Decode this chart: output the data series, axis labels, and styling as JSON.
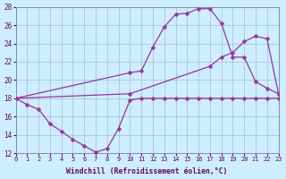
{
  "xlabel": "Windchill (Refroidissement éolien,°C)",
  "bg_color": "#cceeff",
  "grid_color": "#aabbcc",
  "line_color": "#993399",
  "ylim": [
    12,
    28
  ],
  "xlim": [
    0,
    23
  ],
  "yticks": [
    12,
    14,
    16,
    18,
    20,
    22,
    24,
    26,
    28
  ],
  "xticks": [
    0,
    1,
    2,
    3,
    4,
    5,
    6,
    7,
    8,
    9,
    10,
    11,
    12,
    13,
    14,
    15,
    16,
    17,
    18,
    19,
    20,
    21,
    22,
    23
  ],
  "line1_x": [
    0,
    1,
    2,
    3,
    4,
    5,
    6,
    7,
    8,
    9,
    10,
    11,
    12,
    13,
    14,
    15,
    16,
    17,
    18,
    19,
    20,
    21,
    22,
    23
  ],
  "line1_y": [
    18.0,
    17.3,
    16.8,
    15.2,
    14.4,
    13.5,
    12.8,
    12.1,
    12.5,
    14.7,
    17.8,
    18.0,
    18.0,
    18.0,
    18.0,
    18.0,
    18.0,
    18.0,
    18.0,
    18.0,
    18.0,
    18.0,
    18.0,
    18.0
  ],
  "line2_x": [
    0,
    10,
    11,
    12,
    13,
    14,
    15,
    16,
    17,
    18,
    19,
    20,
    21,
    22,
    23
  ],
  "line2_y": [
    18.0,
    20.8,
    21.0,
    23.6,
    25.8,
    27.2,
    27.3,
    27.8,
    27.8,
    26.2,
    22.5,
    22.5,
    19.8,
    19.1,
    18.5
  ],
  "line3_x": [
    0,
    10,
    17,
    18,
    19,
    20,
    21,
    22,
    23
  ],
  "line3_y": [
    18.0,
    18.5,
    21.5,
    22.5,
    23.0,
    24.2,
    24.8,
    24.5,
    18.5
  ]
}
